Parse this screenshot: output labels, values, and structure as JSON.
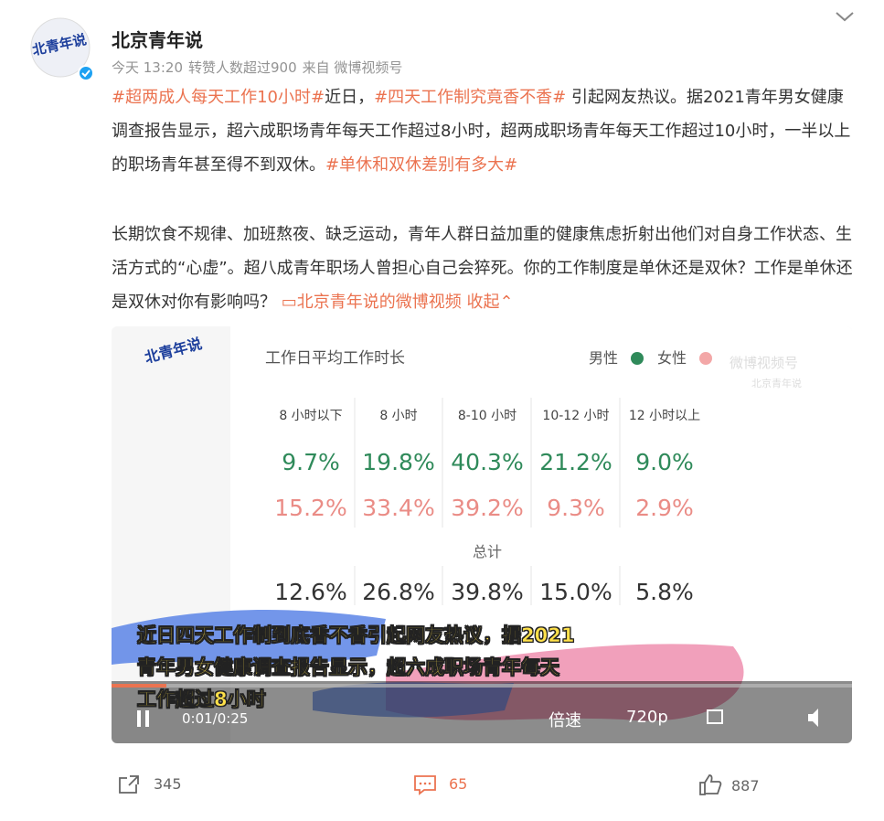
{
  "post": {
    "author": "北京青年说",
    "logo": "北青年说",
    "meta": {
      "time": "今天 13:20",
      "note": "转赞人数超过900",
      "source": "来自 微博视频号"
    },
    "paragraph1": [
      "#超两成人每天工作10小时#",
      "近日，",
      "#四天工作制究竟香不香#",
      " 引起网友热议。据2021青年男女健康调查报告显示，超六成职场青年每天工作超过8小时，超两成职场青年每天工作超过10小时，一半以上的职场青年甚至得不到双休。",
      "#单休和双休差别有多大#"
    ],
    "paragraph2": {
      "text": "长期饮食不规律、加班熬夜、缺乏运动，青年人群日益加重的健康焦虑折射出他们对自身工作状态、生活方式的“心虚”。超八成青年职场人曾担心自己会猝死。你的工作制度是单休还是双休？工作是单休还是双休对你有影响吗？",
      "link": "北京青年说的微博视频",
      "collapse": "收起"
    },
    "video": {
      "table": {
        "title": "工作日平均工作时长",
        "legend": [
          "男性",
          "女性"
        ],
        "watermark": [
          "微博视频号",
          "北京青年说"
        ],
        "columns": [
          "8 小时以下",
          "8 小时",
          "8-10 小时",
          "10-12 小时",
          "12 小时以上"
        ],
        "male": [
          "9.7%",
          "19.8%",
          "40.3%",
          "21.2%",
          "9.0%"
        ],
        "female": [
          "15.2%",
          "33.4%",
          "39.2%",
          "9.3%",
          "2.9%"
        ],
        "total_label": "总计",
        "total": [
          "12.6%",
          "26.8%",
          "39.8%",
          "15.0%",
          "5.8%"
        ]
      },
      "subtitle": [
        "近日四天工作制到底香不香引起网友热议，据2021",
        "青年男女健康调查报告显示，超六成职场青年每天",
        "工作超过8小时"
      ],
      "controls": {
        "time": "0:01/0:25",
        "speed": "倍速",
        "quality": "720p"
      }
    },
    "actions": {
      "share": "345",
      "comment": "65",
      "like": "887"
    }
  }
}
